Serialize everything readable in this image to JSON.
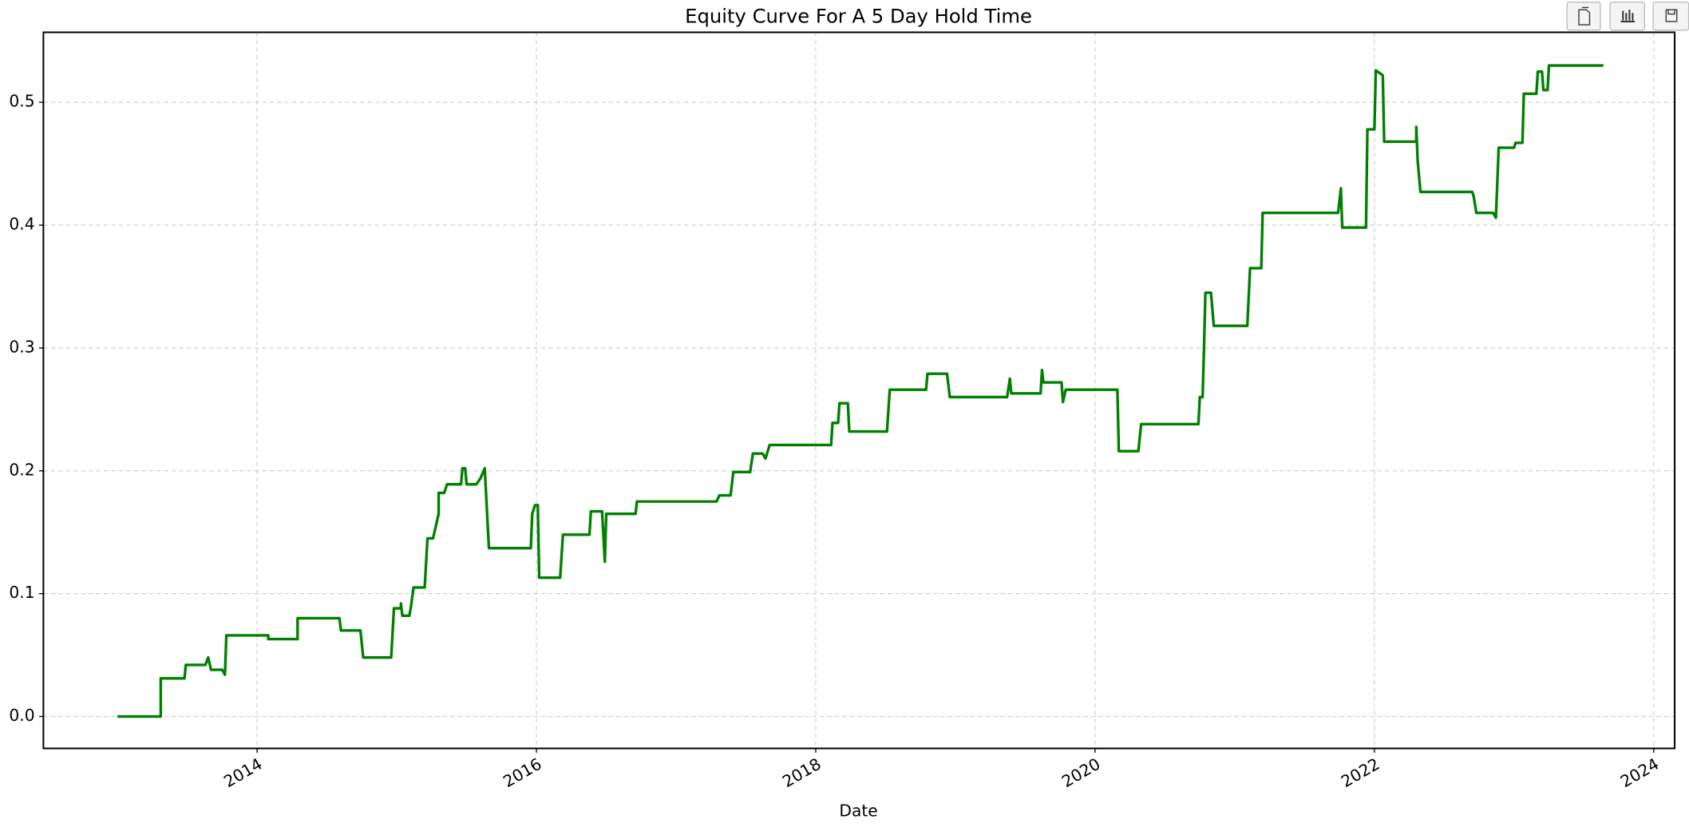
{
  "chart_data": {
    "type": "line",
    "title": "Equity Curve For A 5 Day Hold Time",
    "x_label": "Date",
    "color": "#008000",
    "grid": true,
    "xlim": [
      2012.47,
      2024.15
    ],
    "ylim": [
      -0.026,
      0.557
    ],
    "xticks": [
      2014,
      2016,
      2018,
      2020,
      2022,
      2024
    ],
    "yticks": [
      {
        "value": 0,
        "label": "0.0"
      },
      0.1,
      0.2,
      0.3,
      0.4,
      0.5
    ],
    "x": [
      2013.0,
      2013.31,
      2013.31,
      2013.48,
      2013.49,
      2013.63,
      2013.65,
      2013.67,
      2013.75,
      2013.77,
      2013.78,
      2014.08,
      2014.08,
      2014.29,
      2014.29,
      2014.59,
      2014.6,
      2014.74,
      2014.76,
      2014.96,
      2014.98,
      2015.03,
      2015.03,
      2015.04,
      2015.09,
      2015.1,
      2015.12,
      2015.2,
      2015.22,
      2015.26,
      2015.3,
      2015.3,
      2015.34,
      2015.36,
      2015.46,
      2015.47,
      2015.49,
      2015.5,
      2015.57,
      2015.6,
      2015.63,
      2015.66,
      2015.96,
      2015.97,
      2015.99,
      2016.01,
      2016.02,
      2016.17,
      2016.19,
      2016.38,
      2016.39,
      2016.47,
      2016.49,
      2016.5,
      2016.71,
      2016.72,
      2017.29,
      2017.31,
      2017.39,
      2017.41,
      2017.53,
      2017.55,
      2017.62,
      2017.64,
      2017.67,
      2018.11,
      2018.12,
      2018.16,
      2018.17,
      2018.23,
      2018.24,
      2018.51,
      2018.53,
      2018.79,
      2018.8,
      2018.94,
      2018.96,
      2019.37,
      2019.39,
      2019.4,
      2019.61,
      2019.62,
      2019.63,
      2019.76,
      2019.77,
      2019.79,
      2020.16,
      2020.17,
      2020.31,
      2020.33,
      2020.74,
      2020.75,
      2020.77,
      2020.78,
      2020.79,
      2020.83,
      2020.85,
      2021.09,
      2021.11,
      2021.19,
      2021.2,
      2021.74,
      2021.76,
      2021.77,
      2021.94,
      2021.95,
      2022.0,
      2022.01,
      2022.06,
      2022.07,
      2022.3,
      2022.3,
      2022.31,
      2022.33,
      2022.7,
      2022.71,
      2022.73,
      2022.85,
      2022.87,
      2022.89,
      2023.0,
      2023.01,
      2023.06,
      2023.07,
      2023.16,
      2023.17,
      2023.2,
      2023.21,
      2023.24,
      2023.25,
      2023.64
    ],
    "values": [
      0,
      0,
      0.031,
      0.031,
      0.042,
      0.042,
      0.048,
      0.038,
      0.038,
      0.034,
      0.066,
      0.066,
      0.063,
      0.063,
      0.08,
      0.08,
      0.07,
      0.07,
      0.048,
      0.048,
      0.088,
      0.088,
      0.092,
      0.082,
      0.082,
      0.088,
      0.105,
      0.105,
      0.145,
      0.145,
      0.165,
      0.182,
      0.182,
      0.189,
      0.189,
      0.202,
      0.202,
      0.189,
      0.189,
      0.194,
      0.202,
      0.137,
      0.137,
      0.165,
      0.172,
      0.172,
      0.113,
      0.113,
      0.148,
      0.148,
      0.167,
      0.167,
      0.126,
      0.165,
      0.165,
      0.175,
      0.175,
      0.18,
      0.18,
      0.199,
      0.199,
      0.214,
      0.214,
      0.21,
      0.221,
      0.221,
      0.239,
      0.239,
      0.255,
      0.255,
      0.232,
      0.232,
      0.266,
      0.266,
      0.279,
      0.279,
      0.26,
      0.26,
      0.275,
      0.263,
      0.263,
      0.282,
      0.272,
      0.272,
      0.256,
      0.266,
      0.266,
      0.216,
      0.216,
      0.238,
      0.238,
      0.26,
      0.26,
      0.3,
      0.345,
      0.345,
      0.318,
      0.318,
      0.365,
      0.365,
      0.41,
      0.41,
      0.43,
      0.398,
      0.398,
      0.478,
      0.478,
      0.526,
      0.522,
      0.468,
      0.468,
      0.48,
      0.452,
      0.427,
      0.427,
      0.424,
      0.41,
      0.41,
      0.406,
      0.463,
      0.463,
      0.467,
      0.467,
      0.507,
      0.507,
      0.525,
      0.525,
      0.51,
      0.51,
      0.53,
      0.53
    ]
  }
}
